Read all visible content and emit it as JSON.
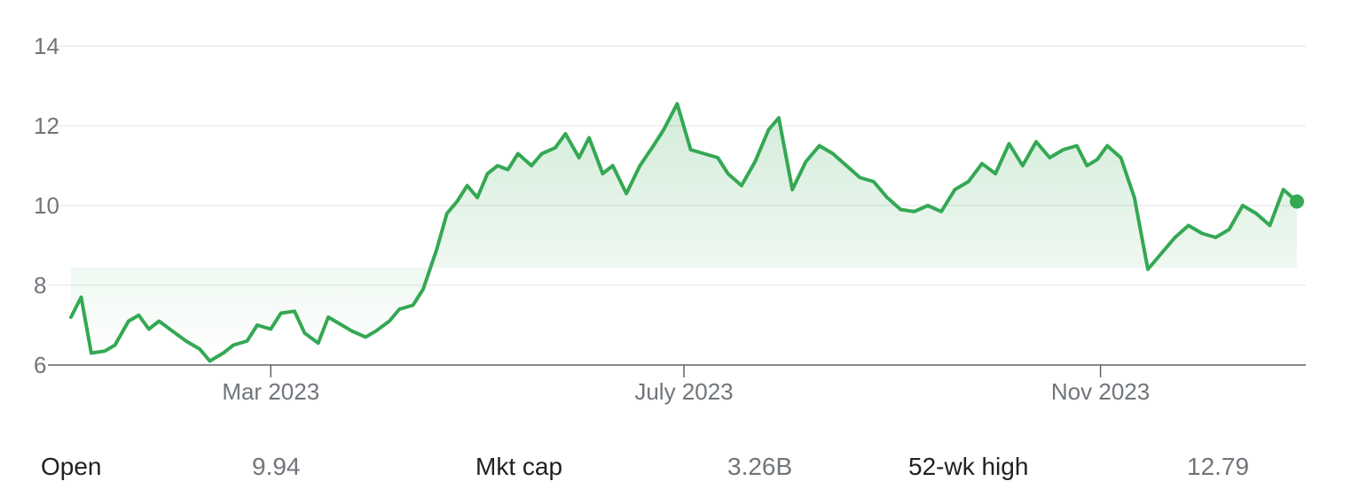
{
  "chart_data": {
    "type": "area",
    "ylim": [
      6,
      14
    ],
    "yticks": [
      6,
      8,
      10,
      12,
      14
    ],
    "xlim": [
      "2023-01-01",
      "2023-12-29"
    ],
    "xticks": [
      {
        "date": "2023-03-01",
        "label": "Mar 2023"
      },
      {
        "date": "2023-07-01",
        "label": "July 2023"
      },
      {
        "date": "2023-11-01",
        "label": "Nov 2023"
      }
    ],
    "grid": true,
    "line_color": "#34a853",
    "fill_color": "#34a853",
    "series": [
      {
        "x": [
          "2023-01-01",
          "2023-01-04",
          "2023-01-07",
          "2023-01-11",
          "2023-01-14",
          "2023-01-18",
          "2023-01-21",
          "2023-01-24",
          "2023-01-27",
          "2023-01-31",
          "2023-02-04",
          "2023-02-08",
          "2023-02-11",
          "2023-02-15",
          "2023-02-18",
          "2023-02-22",
          "2023-02-25",
          "2023-03-01",
          "2023-03-04",
          "2023-03-08",
          "2023-03-11",
          "2023-03-15",
          "2023-03-18",
          "2023-03-22",
          "2023-03-25",
          "2023-03-29",
          "2023-04-01",
          "2023-04-05",
          "2023-04-08",
          "2023-04-12",
          "2023-04-15",
          "2023-04-19",
          "2023-04-22",
          "2023-04-25",
          "2023-04-28",
          "2023-05-01",
          "2023-05-04",
          "2023-05-07",
          "2023-05-10",
          "2023-05-13",
          "2023-05-17",
          "2023-05-20",
          "2023-05-24",
          "2023-05-27",
          "2023-05-31",
          "2023-06-03",
          "2023-06-07",
          "2023-06-10",
          "2023-06-14",
          "2023-06-18",
          "2023-06-22",
          "2023-06-25",
          "2023-06-29",
          "2023-07-03",
          "2023-07-07",
          "2023-07-11",
          "2023-07-14",
          "2023-07-18",
          "2023-07-22",
          "2023-07-26",
          "2023-07-29",
          "2023-08-02",
          "2023-08-06",
          "2023-08-10",
          "2023-08-14",
          "2023-08-18",
          "2023-08-22",
          "2023-08-26",
          "2023-08-30",
          "2023-09-03",
          "2023-09-07",
          "2023-09-11",
          "2023-09-15",
          "2023-09-19",
          "2023-09-23",
          "2023-09-27",
          "2023-10-01",
          "2023-10-05",
          "2023-10-09",
          "2023-10-13",
          "2023-10-17",
          "2023-10-21",
          "2023-10-25",
          "2023-10-28",
          "2023-10-31",
          "2023-11-03",
          "2023-11-07",
          "2023-11-11",
          "2023-11-15",
          "2023-11-19",
          "2023-11-23",
          "2023-11-27",
          "2023-12-01",
          "2023-12-05",
          "2023-12-09",
          "2023-12-13",
          "2023-12-17",
          "2023-12-21",
          "2023-12-25",
          "2023-12-29"
        ],
        "y": [
          7.2,
          7.7,
          6.3,
          6.35,
          6.5,
          7.1,
          7.25,
          6.9,
          7.1,
          6.85,
          6.6,
          6.4,
          6.1,
          6.3,
          6.5,
          6.6,
          7.0,
          6.9,
          7.3,
          7.35,
          6.8,
          6.55,
          7.2,
          7.0,
          6.85,
          6.7,
          6.85,
          7.1,
          7.4,
          7.5,
          7.9,
          8.9,
          9.8,
          10.1,
          10.5,
          10.2,
          10.8,
          11.0,
          10.9,
          11.3,
          11.0,
          11.3,
          11.45,
          11.8,
          11.2,
          11.7,
          10.8,
          11.0,
          10.3,
          11.0,
          11.5,
          11.9,
          12.55,
          11.4,
          11.3,
          11.2,
          10.8,
          10.5,
          11.1,
          11.9,
          12.2,
          10.4,
          11.1,
          11.5,
          11.3,
          11.0,
          10.7,
          10.6,
          10.2,
          9.9,
          9.85,
          10.0,
          9.85,
          10.4,
          10.6,
          11.05,
          10.8,
          11.55,
          11.0,
          11.6,
          11.2,
          11.4,
          11.5,
          11.0,
          11.15,
          11.5,
          11.2,
          10.2,
          8.4,
          8.8,
          9.2,
          9.5,
          9.3,
          9.2,
          9.4,
          10.0,
          9.8,
          9.5,
          10.4,
          10.1
        ]
      }
    ]
  },
  "stats": [
    {
      "label": "Open",
      "value": "9.94"
    },
    {
      "label": "Mkt cap",
      "value": "3.26B"
    },
    {
      "label": "52-wk high",
      "value": "12.79"
    }
  ]
}
